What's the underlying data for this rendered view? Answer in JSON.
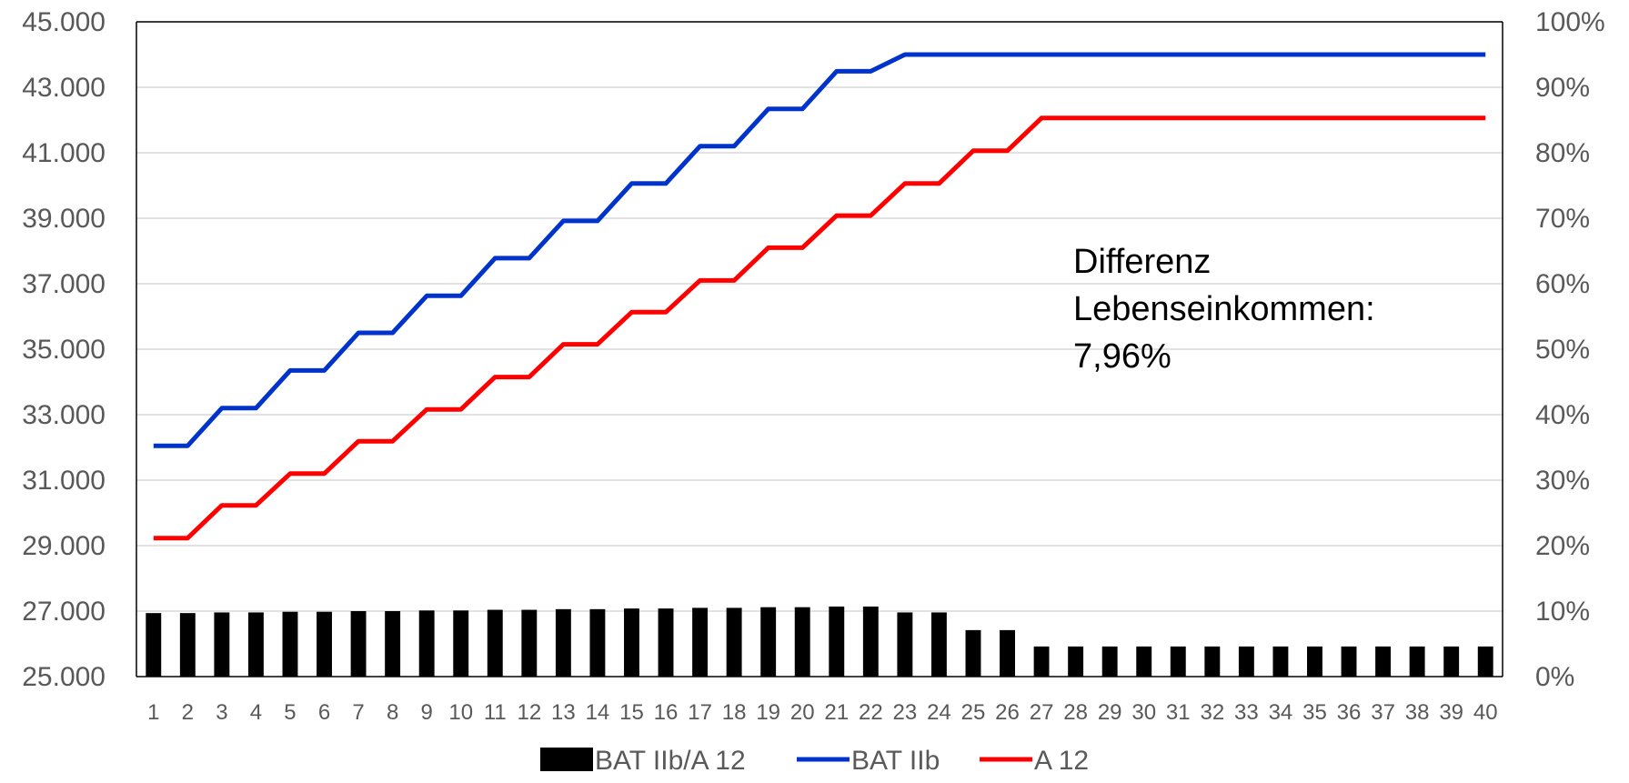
{
  "chart_data": {
    "type": "bar+line",
    "x": [
      1,
      2,
      3,
      4,
      5,
      6,
      7,
      8,
      9,
      10,
      11,
      12,
      13,
      14,
      15,
      16,
      17,
      18,
      19,
      20,
      21,
      22,
      23,
      24,
      25,
      26,
      27,
      28,
      29,
      30,
      31,
      32,
      33,
      34,
      35,
      36,
      37,
      38,
      39,
      40
    ],
    "y_left": {
      "ylim": [
        25000,
        45000
      ],
      "ticks": [
        25000,
        27000,
        29000,
        31000,
        33000,
        35000,
        37000,
        39000,
        41000,
        43000,
        45000
      ],
      "tick_labels": [
        "25.000",
        "27.000",
        "29.000",
        "31.000",
        "33.000",
        "35.000",
        "37.000",
        "39.000",
        "41.000",
        "43.000",
        "45.000"
      ]
    },
    "y_right": {
      "ylim": [
        0,
        100
      ],
      "ticks": [
        0,
        10,
        20,
        30,
        40,
        50,
        60,
        70,
        80,
        90,
        100
      ],
      "tick_labels": [
        "0%",
        "10%",
        "20%",
        "30%",
        "40%",
        "50%",
        "60%",
        "70%",
        "80%",
        "90%",
        "100%"
      ]
    },
    "grid": true,
    "legend_position": "bottom",
    "series": [
      {
        "name": "BAT IIb/A 12",
        "kind": "bar",
        "axis": "right",
        "color": "#000000",
        "values": [
          9.7,
          9.7,
          9.8,
          9.8,
          9.9,
          9.9,
          10.0,
          10.0,
          10.1,
          10.1,
          10.2,
          10.2,
          10.3,
          10.3,
          10.4,
          10.4,
          10.5,
          10.5,
          10.6,
          10.6,
          10.7,
          10.7,
          9.8,
          9.8,
          7.1,
          7.1,
          4.6,
          4.6,
          4.6,
          4.6,
          4.6,
          4.6,
          4.6,
          4.6,
          4.6,
          4.6,
          4.6,
          4.6,
          4.6,
          4.6
        ]
      },
      {
        "name": "BAT IIb",
        "kind": "line",
        "axis": "left",
        "color": "#0033CC",
        "values": [
          32050,
          32050,
          33200,
          33200,
          34350,
          34350,
          35500,
          35500,
          36630,
          36630,
          37780,
          37780,
          38920,
          38920,
          40060,
          40060,
          41200,
          41200,
          42340,
          42340,
          43490,
          43490,
          44000,
          44000,
          44000,
          44000,
          44000,
          44000,
          44000,
          44000,
          44000,
          44000,
          44000,
          44000,
          44000,
          44000,
          44000,
          44000,
          44000,
          44000
        ]
      },
      {
        "name": "A 12",
        "kind": "line",
        "axis": "left",
        "color": "#FF0000",
        "values": [
          29230,
          29230,
          30230,
          30230,
          31200,
          31200,
          32190,
          32190,
          33160,
          33160,
          34150,
          34150,
          35150,
          35150,
          36130,
          36130,
          37100,
          37100,
          38100,
          38100,
          39080,
          39080,
          40060,
          40060,
          41060,
          41060,
          42060,
          42060,
          42060,
          42060,
          42060,
          42060,
          42060,
          42060,
          42060,
          42060,
          42060,
          42060,
          42060,
          42060
        ]
      }
    ],
    "annotation": {
      "lines": [
        "Differenz",
        "Lebenseinkommen:",
        "7,96%"
      ]
    }
  }
}
